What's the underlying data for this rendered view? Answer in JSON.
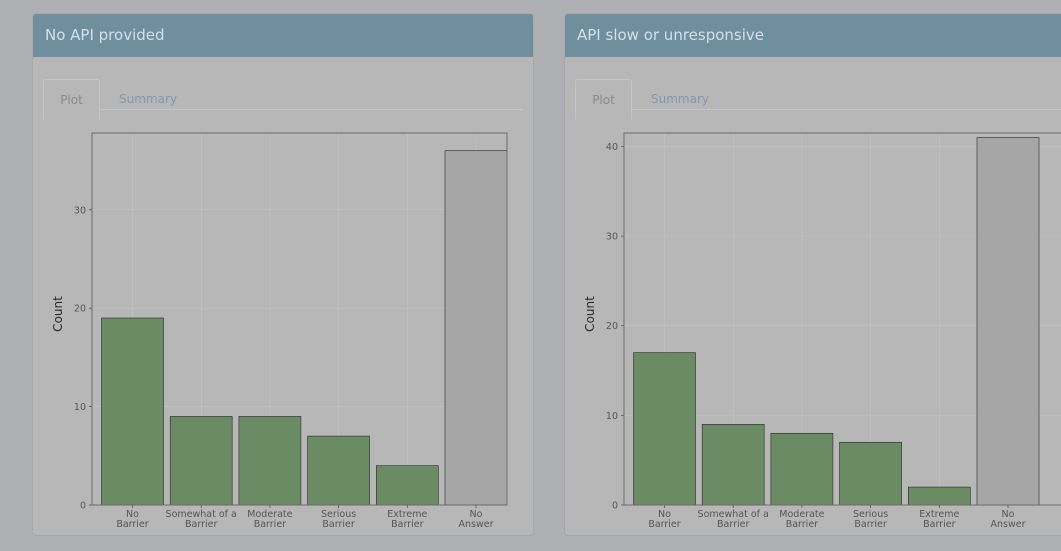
{
  "panels": [
    {
      "title": "No API provided",
      "tabs": [
        {
          "label": "Plot",
          "active": true
        },
        {
          "label": "Summary",
          "active": false
        }
      ]
    },
    {
      "title": "API slow or unresponsive",
      "tabs": [
        {
          "label": "Plot",
          "active": true
        },
        {
          "label": "Summary",
          "active": false
        }
      ]
    }
  ],
  "colors": {
    "answer_bar": "#6b8b64",
    "no_answer_bar": "#a6a6a6",
    "header": "#6f8e9e"
  },
  "chart_data": [
    {
      "type": "bar",
      "ylabel": "Count",
      "categories": [
        [
          "No",
          "Barrier"
        ],
        [
          "Somewhat of a",
          "Barrier"
        ],
        [
          "Moderate",
          "Barrier"
        ],
        [
          "Serious",
          "Barrier"
        ],
        [
          "Extreme",
          "Barrier"
        ],
        [
          "No",
          "Answer"
        ]
      ],
      "values": [
        19,
        9,
        9,
        7,
        4,
        36
      ],
      "yticks": [
        0,
        10,
        20,
        30
      ],
      "ylim": [
        0,
        37.8
      ],
      "grid": true,
      "legend": "none"
    },
    {
      "type": "bar",
      "ylabel": "Count",
      "categories": [
        [
          "No",
          "Barrier"
        ],
        [
          "Somewhat of a",
          "Barrier"
        ],
        [
          "Moderate",
          "Barrier"
        ],
        [
          "Serious",
          "Barrier"
        ],
        [
          "Extreme",
          "Barrier"
        ],
        [
          "No",
          "Answer"
        ]
      ],
      "values": [
        17,
        9,
        8,
        7,
        2,
        41
      ],
      "yticks": [
        0,
        10,
        20,
        30,
        40
      ],
      "ylim": [
        0,
        41.5
      ],
      "grid": true,
      "legend": "none"
    }
  ]
}
